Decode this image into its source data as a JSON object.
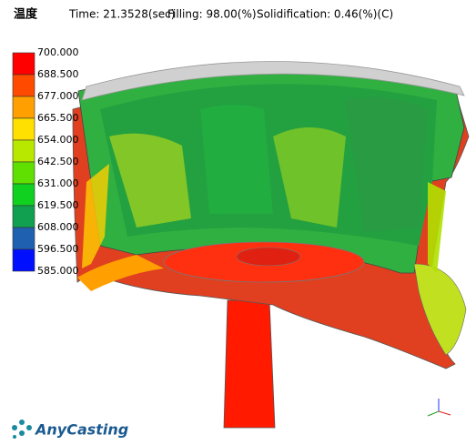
{
  "header": {
    "label": "温度",
    "time": "Time: 21.3528(sec)",
    "filling": "Filling: 98.00(%)",
    "solidification": "Solidification:  0.46(%)(C)"
  },
  "legend": {
    "labels": [
      "700.000",
      "688.500",
      "677.000",
      "665.500",
      "654.000",
      "642.500",
      "631.000",
      "619.500",
      "608.000",
      "596.500",
      "585.000"
    ],
    "colors": [
      "#ff0000",
      "#ff4a00",
      "#ffa000",
      "#ffe000",
      "#b8e800",
      "#60e000",
      "#10d020",
      "#10a050",
      "#2060b0",
      "#0010ff"
    ]
  },
  "logo": "AnyCasting"
}
